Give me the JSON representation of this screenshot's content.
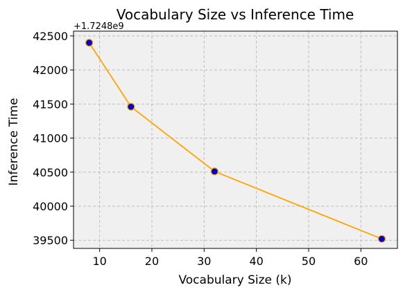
{
  "chart_data": {
    "type": "line",
    "title": "Vocabulary Size vs Inference Time",
    "xlabel": "Vocabulary Size (k)",
    "ylabel": "Inference Time",
    "y_offset_label": "+1.7248e9",
    "x": [
      8,
      16,
      32,
      64
    ],
    "series": [
      {
        "values": [
          42400,
          41460,
          40510,
          39520
        ]
      }
    ],
    "xlim": [
      5,
      67
    ],
    "ylim": [
      39380,
      42570
    ],
    "x_ticks": [
      10,
      20,
      30,
      40,
      50,
      60
    ],
    "y_ticks": [
      39500,
      40000,
      40500,
      41000,
      41500,
      42000,
      42500
    ],
    "grid": true,
    "legend": "none",
    "colors": {
      "line": "#FFA500",
      "marker_fill": "#0000CD",
      "marker_edge": "#FFA500",
      "plot_background": "#F0F0F0",
      "grid": "#BDBDBD"
    }
  }
}
